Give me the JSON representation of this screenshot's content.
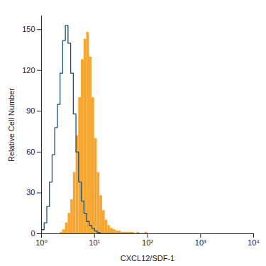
{
  "chart_data": {
    "type": "histogram",
    "x_label": "CXCL12/SDF-1",
    "y_label": "Relative Cell Number",
    "log": "x",
    "grid": false,
    "xlim": [
      1,
      10000
    ],
    "ylim": [
      0,
      160
    ],
    "xticks": [
      {
        "value": 1,
        "label": "10⁰"
      },
      {
        "value": 10,
        "label": "10¹"
      },
      {
        "value": 100,
        "label": "10²"
      },
      {
        "value": 1000,
        "label": "10³"
      },
      {
        "value": 10000,
        "label": "10⁴"
      }
    ],
    "yticks": [
      0,
      30,
      60,
      90,
      120,
      150
    ],
    "bins": [
      1,
      1.122,
      1.259,
      1.413,
      1.585,
      1.778,
      1.995,
      2.239,
      2.512,
      2.818,
      3.162,
      3.548,
      3.981,
      4.467,
      5.012,
      5.623,
      6.31,
      7.079,
      7.943,
      8.913,
      10,
      11.22,
      12.59,
      14.13,
      15.85,
      17.78,
      19.95,
      22.39,
      25.12,
      28.18,
      31.62,
      35.48,
      39.81,
      44.67,
      50.12,
      56.23,
      63.1,
      70.79,
      79.43,
      89.13,
      100
    ],
    "series": [
      {
        "type": "bar",
        "color": "#f7a731",
        "values": [
          0,
          0,
          0,
          0,
          0,
          0,
          0,
          1,
          3,
          8,
          15,
          25,
          45,
          72,
          100,
          128,
          143,
          148,
          130,
          100,
          70,
          45,
          28,
          17,
          10,
          6,
          4,
          3,
          2,
          2,
          1,
          1,
          1,
          1,
          1,
          0,
          1,
          0,
          0,
          1
        ]
      },
      {
        "type": "line",
        "color": "#1d4f7a",
        "line_style": "solid",
        "values": [
          3,
          8,
          20,
          38,
          58,
          78,
          95,
          118,
          142,
          153,
          140,
          118,
          88,
          60,
          38,
          24,
          15,
          9,
          6,
          4,
          2,
          1,
          0,
          0,
          0,
          0,
          0,
          0,
          0,
          0,
          0,
          0,
          0,
          0,
          0,
          0,
          0,
          0,
          0,
          0
        ]
      }
    ]
  }
}
